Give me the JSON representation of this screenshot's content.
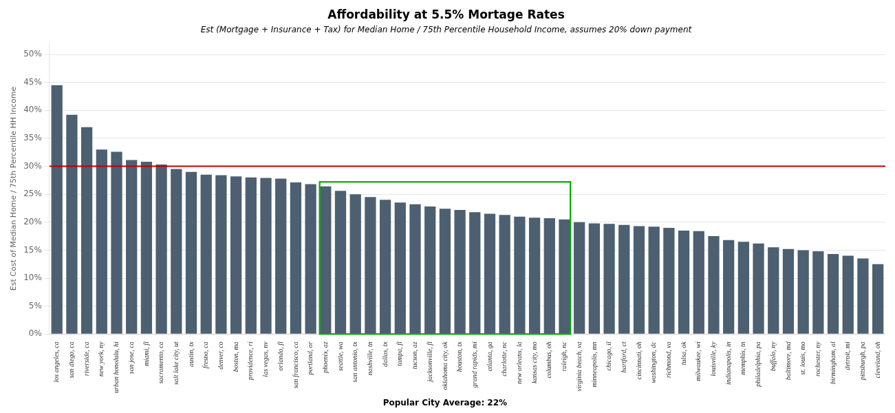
{
  "chart_data": {
    "type": "bar",
    "title": "Affordability at 5.5% Mortage Rates",
    "subtitle": "Est (Mortgage + Insurance + Tax) for Median Home / 75th Percentile Household Income, assumes 20% down payment",
    "ylabel": "Est Cost of Median Home / 75th Percentile HH Income",
    "categories": [
      "los angeles, ca",
      "san diego, ca",
      "riverside, ca",
      "new york, ny",
      "urban honolulu, hi",
      "san jose, ca",
      "miami, fl",
      "sacramento, ca",
      "salt lake city, ut",
      "austin, tx",
      "fresno, ca",
      "denver, co",
      "boston, ma",
      "providence, ri",
      "las vegas, nv",
      "orlando, fl",
      "san francisco, ca",
      "portland, or",
      "phoenix, az",
      "seattle, wa",
      "san antonio, tx",
      "nashville, tn",
      "dallas, tx",
      "tampa, fl",
      "tucson, az",
      "jacksonville, fl",
      "oklahoma city, ok",
      "houston, tx",
      "grand rapids, mi",
      "atlanta, ga",
      "charlotte, nc",
      "new orleans, la",
      "kansas city, mo",
      "columbus, oh",
      "raleigh, nc",
      "virginia beach, va",
      "minneapolis, mn",
      "chicago, il",
      "hartford, ct",
      "cincinnati, oh",
      "washington, dc",
      "richmond, va",
      "tulsa, ok",
      "milwaukee, wi",
      "louisville, ky",
      "indianapolis, in",
      "memphis, tn",
      "philadelphia, pa",
      "buffalo, ny",
      "baltimore, md",
      "st. louis, mo",
      "rochester, ny",
      "birmingham, al",
      "detroit, mi",
      "pittsburgh, pa",
      "cleveland, oh"
    ],
    "values": [
      0.445,
      0.392,
      0.37,
      0.33,
      0.326,
      0.311,
      0.308,
      0.303,
      0.295,
      0.29,
      0.285,
      0.284,
      0.282,
      0.28,
      0.279,
      0.278,
      0.271,
      0.268,
      0.264,
      0.256,
      0.25,
      0.245,
      0.24,
      0.235,
      0.232,
      0.228,
      0.224,
      0.222,
      0.218,
      0.215,
      0.213,
      0.21,
      0.208,
      0.207,
      0.205,
      0.2,
      0.198,
      0.197,
      0.195,
      0.193,
      0.192,
      0.19,
      0.185,
      0.184,
      0.175,
      0.168,
      0.165,
      0.162,
      0.155,
      0.152,
      0.15,
      0.148,
      0.143,
      0.14,
      0.135,
      0.125
    ],
    "color": "#4d6071",
    "ylim": [
      0,
      0.52
    ],
    "yticks": [
      {
        "value": 0.0,
        "label": "0%"
      },
      {
        "value": 0.05,
        "label": "5%"
      },
      {
        "value": 0.1,
        "label": "10%"
      },
      {
        "value": 0.15,
        "label": "15%"
      },
      {
        "value": 0.2,
        "label": "20%"
      },
      {
        "value": 0.25,
        "label": "25%"
      },
      {
        "value": 0.3,
        "label": "30%"
      },
      {
        "value": 0.35,
        "label": "35%"
      },
      {
        "value": 0.4,
        "label": "40%"
      },
      {
        "value": 0.45,
        "label": "45%"
      },
      {
        "value": 0.5,
        "label": "50%"
      }
    ],
    "grid": true,
    "annotations": [
      {
        "type": "hline",
        "y": 0.3,
        "color": "#c00000"
      },
      {
        "type": "box",
        "from": "phoenix, az",
        "to": "raleigh, nc",
        "top": 0.272,
        "color": "#00aa00",
        "label": "Popular City Average: 22%"
      }
    ]
  }
}
